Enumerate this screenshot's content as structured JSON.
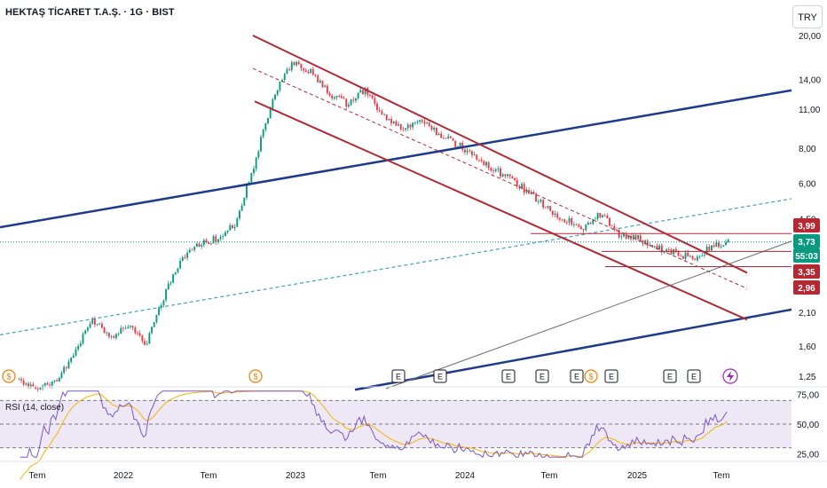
{
  "header": {
    "title": "HEKTAŞ TİCARET T.A.Ş. · 1G · BIST",
    "currency_button": "TRY"
  },
  "chart_data": [
    {
      "type": "line",
      "title": "HEKTAŞ TİCARET T.A.Ş. · 1G · BIST",
      "scale": "log",
      "ylim": [
        1.1,
        22
      ],
      "y_ticks": [
        "20,00",
        "14,00",
        "11,00",
        "8,00",
        "6,00",
        "4,50",
        "2,10",
        "1,60",
        "1,25"
      ],
      "x_ticks": [
        "Tem",
        "2022",
        "Tem",
        "2023",
        "Tem",
        "2024",
        "Tem",
        "2025",
        "Tem"
      ],
      "series": [
        {
          "values": [
            1.2,
            1.15,
            1.2,
            1.45,
            2.0,
            1.72,
            1.9,
            1.62,
            2.4,
            3.3,
            3.7,
            3.85,
            4.4,
            7.0,
            12.0,
            16.0,
            15.0,
            12.5,
            11.5,
            12.8,
            10.5,
            9.3,
            10.0,
            9.0,
            8.3,
            7.6,
            6.8,
            6.2,
            5.6,
            4.9,
            4.5,
            4.1,
            4.7,
            3.95,
            3.85,
            3.55,
            3.45,
            3.25,
            3.55,
            3.73
          ]
        }
      ],
      "price_tags": [
        {
          "value": "3,99",
          "color": "#b22833"
        },
        {
          "value": "3,73",
          "color": "#089981"
        },
        {
          "value": "55:03",
          "color": "#089981"
        },
        {
          "value": "3,35",
          "color": "#b22833"
        },
        {
          "value": "2,96",
          "color": "#b22833"
        }
      ],
      "event_markers": [
        "S",
        "S",
        "E",
        "E",
        "E",
        "E",
        "E",
        "S",
        "E",
        "E",
        "E"
      ],
      "grid": false
    },
    {
      "type": "line",
      "title": "RSI (14, close)",
      "ylim": [
        20,
        80
      ],
      "y_ticks": [
        "75,00",
        "50,00",
        "25,00"
      ],
      "levels": [
        70,
        50,
        30
      ]
    }
  ],
  "colors": {
    "up": "#089981",
    "down": "#f23645",
    "channel": "#b22833",
    "trend_blue": "#1e3a8a",
    "dashed_blue": "#3fa2c9",
    "rsi_line": "#7e57c2",
    "rsi_ma": "#f7b500",
    "rsi_band": "#ede7f6"
  },
  "icons": {
    "split": "dollar-circle-icon",
    "earnings": "e-square-icon",
    "lightning": "lightning-icon"
  }
}
